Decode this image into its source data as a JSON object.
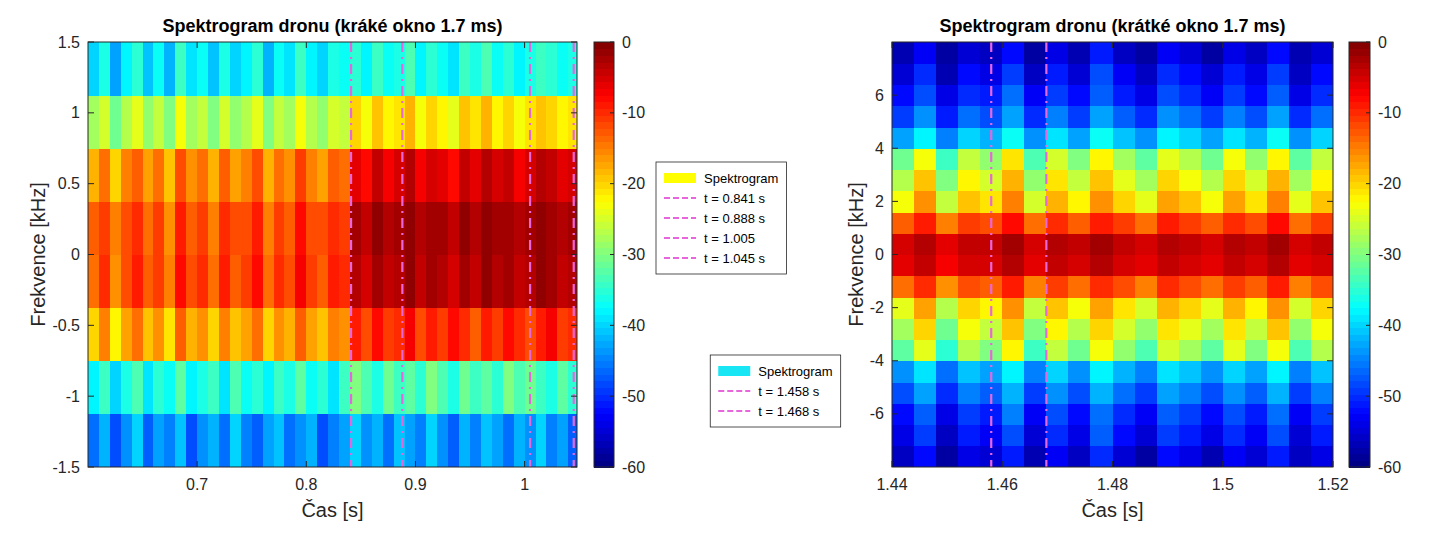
{
  "chart_data": [
    {
      "type": "heatmap",
      "title": "Spektrogram dronu (kráké okno 1.7 ms)",
      "x_label": "Čas [s]",
      "y_label": "Frekvence [kHz]",
      "xlim": [
        0.6,
        1.048
      ],
      "xticks": [
        0.7,
        0.8,
        0.9,
        1
      ],
      "ylim": [
        -1.5,
        1.5
      ],
      "yticks": [
        -1.5,
        -1,
        -0.5,
        0,
        0.5,
        1,
        1.5
      ],
      "x": [
        0.605,
        0.615,
        0.625,
        0.635,
        0.645,
        0.655,
        0.665,
        0.675,
        0.685,
        0.695,
        0.705,
        0.715,
        0.725,
        0.735,
        0.745,
        0.755,
        0.765,
        0.775,
        0.785,
        0.795,
        0.805,
        0.815,
        0.825,
        0.835,
        0.845,
        0.855,
        0.865,
        0.875,
        0.885,
        0.895,
        0.905,
        0.915,
        0.925,
        0.935,
        0.945,
        0.955,
        0.965,
        0.975,
        0.985,
        0.995,
        1.005,
        1.015,
        1.025,
        1.035,
        1.045
      ],
      "y": [
        -1.3125,
        -0.9375,
        -0.5625,
        -0.1875,
        0.1875,
        0.5625,
        0.9375,
        1.3125
      ],
      "series": [
        {
          "name": "Spektrogram",
          "color": "#ffff00",
          "values": [
            [
              -46,
              -42,
              -48,
              -44,
              -40,
              -47,
              -43,
              -45,
              -41,
              -48,
              -44,
              -42,
              -46,
              -40,
              -45,
              -47,
              -43,
              -41,
              -46,
              -44,
              -42,
              -48,
              -45,
              -43,
              -40,
              -44,
              -42,
              -46,
              -41,
              -43,
              -45,
              -40,
              -44,
              -47,
              -42,
              -45,
              -41,
              -43,
              -46,
              -42,
              -44,
              -40,
              -45,
              -43,
              -47
            ],
            [
              -38,
              -34,
              -40,
              -36,
              -33,
              -39,
              -35,
              -37,
              -32,
              -38,
              -36,
              -34,
              -39,
              -33,
              -37,
              -35,
              -38,
              -34,
              -36,
              -32,
              -37,
              -35,
              -39,
              -34,
              -30,
              -33,
              -36,
              -31,
              -34,
              -32,
              -35,
              -30,
              -33,
              -36,
              -31,
              -34,
              -32,
              -35,
              -30,
              -33,
              -31,
              -34,
              -36,
              -32,
              -35
            ],
            [
              -20,
              -15,
              -22,
              -17,
              -14,
              -19,
              -16,
              -21,
              -13,
              -18,
              -16,
              -20,
              -15,
              -19,
              -17,
              -14,
              -20,
              -16,
              -18,
              -13,
              -17,
              -19,
              -15,
              -16,
              -9,
              -12,
              -8,
              -11,
              -10,
              -7,
              -12,
              -9,
              -11,
              -8,
              -10,
              -13,
              -9,
              -11,
              -8,
              -10,
              -12,
              -9,
              -7,
              -11,
              -10
            ],
            [
              -14,
              -10,
              -16,
              -12,
              -9,
              -13,
              -11,
              -15,
              -8,
              -12,
              -10,
              -14,
              -9,
              -13,
              -11,
              -8,
              -14,
              -10,
              -12,
              -7,
              -11,
              -13,
              -9,
              -10,
              -3,
              -5,
              -2,
              -4,
              -3,
              -1,
              -4,
              -2,
              -3,
              -5,
              -2,
              -4,
              -1,
              -3,
              -2,
              -4,
              -3,
              -1,
              -2,
              -4,
              -3
            ],
            [
              -13,
              -11,
              -15,
              -12,
              -10,
              -14,
              -11,
              -16,
              -9,
              -13,
              -11,
              -15,
              -10,
              -12,
              -12,
              -9,
              -15,
              -11,
              -13,
              -8,
              -12,
              -12,
              -10,
              -11,
              -2,
              -4,
              -1,
              -3,
              -2,
              -1,
              -3,
              -2,
              -2,
              -4,
              -1,
              -3,
              -1,
              -2,
              -2,
              -3,
              -2,
              -1,
              -2,
              -3,
              -2
            ],
            [
              -18,
              -14,
              -20,
              -15,
              -13,
              -17,
              -14,
              -19,
              -12,
              -16,
              -14,
              -18,
              -13,
              -17,
              -15,
              -12,
              -18,
              -14,
              -16,
              -11,
              -15,
              -17,
              -13,
              -14,
              -6,
              -8,
              -4,
              -7,
              -5,
              -3,
              -7,
              -5,
              -6,
              -8,
              -4,
              -6,
              -3,
              -5,
              -4,
              -7,
              -5,
              -3,
              -4,
              -6,
              -5
            ],
            [
              -28,
              -25,
              -31,
              -27,
              -24,
              -29,
              -26,
              -30,
              -23,
              -28,
              -26,
              -30,
              -25,
              -29,
              -27,
              -24,
              -30,
              -26,
              -28,
              -23,
              -27,
              -29,
              -25,
              -26,
              -20,
              -23,
              -19,
              -22,
              -21,
              -18,
              -23,
              -20,
              -22,
              -24,
              -19,
              -21,
              -18,
              -22,
              -20,
              -23,
              -21,
              -19,
              -20,
              -22,
              -21
            ],
            [
              -40,
              -36,
              -43,
              -38,
              -35,
              -41,
              -37,
              -42,
              -34,
              -39,
              -37,
              -41,
              -36,
              -40,
              -38,
              -35,
              -42,
              -37,
              -39,
              -34,
              -38,
              -40,
              -36,
              -37,
              -35,
              -38,
              -34,
              -37,
              -36,
              -33,
              -38,
              -35,
              -37,
              -39,
              -34,
              -36,
              -33,
              -37,
              -35,
              -38,
              -36,
              -34,
              -35,
              -37,
              -36
            ]
          ]
        }
      ],
      "vlines": [
        {
          "x": 0.841,
          "name": "t = 0.841 s",
          "color": "#e866dc",
          "line_style": "dashdot"
        },
        {
          "x": 0.888,
          "name": "t = 0.888 s",
          "color": "#e866dc",
          "line_style": "dashdot"
        },
        {
          "x": 1.005,
          "name": "t = 1.005",
          "color": "#e866dc",
          "line_style": "dashdot"
        },
        {
          "x": 1.045,
          "name": "t = 1.045 s",
          "color": "#e866dc",
          "line_style": "dashdot"
        }
      ],
      "colorbar": {
        "lim": [
          -60,
          0
        ],
        "ticks": [
          -60,
          -50,
          -40,
          -30,
          -20,
          -10,
          0
        ]
      },
      "legend": "right"
    },
    {
      "type": "heatmap",
      "title": "Spektrogram dronu (krátké okno 1.7 ms)",
      "x_label": "Čas [s]",
      "y_label": "Frekvence [kHz]",
      "xlim": [
        1.44,
        1.52
      ],
      "xticks": [
        1.44,
        1.46,
        1.48,
        1.5,
        1.52
      ],
      "ylim": [
        -8,
        8
      ],
      "yticks": [
        -6,
        -4,
        -2,
        0,
        2,
        4,
        6
      ],
      "x": [
        1.442,
        1.446,
        1.45,
        1.454,
        1.458,
        1.462,
        1.466,
        1.47,
        1.474,
        1.478,
        1.482,
        1.486,
        1.49,
        1.494,
        1.498,
        1.502,
        1.506,
        1.51,
        1.514,
        1.518
      ],
      "y": [
        -7.6,
        -6.8,
        -6,
        -5.2,
        -4.4,
        -3.6,
        -2.8,
        -2,
        -1.2,
        -0.4,
        0.4,
        1.2,
        2,
        2.8,
        3.6,
        4.4,
        5.2,
        6,
        6.8,
        7.6
      ],
      "series": [
        {
          "name": "Spektrogram",
          "color": "#19e6f5",
          "values": [
            [
              -56,
              -52,
              -58,
              -54,
              -55,
              -51,
              -57,
              -53,
              -56,
              -50,
              -55,
              -58,
              -52,
              -54,
              -57,
              -53,
              -55,
              -51,
              -56,
              -54
            ],
            [
              -54,
              -49,
              -56,
              -51,
              -53,
              -48,
              -55,
              -50,
              -54,
              -47,
              -52,
              -55,
              -49,
              -51,
              -54,
              -50,
              -53,
              -48,
              -55,
              -51
            ],
            [
              -52,
              -47,
              -54,
              -49,
              -51,
              -45,
              -53,
              -48,
              -52,
              -46,
              -50,
              -53,
              -47,
              -49,
              -52,
              -48,
              -51,
              -46,
              -53,
              -49
            ],
            [
              -48,
              -43,
              -50,
              -45,
              -47,
              -42,
              -49,
              -44,
              -48,
              -42,
              -46,
              -49,
              -43,
              -45,
              -48,
              -44,
              -47,
              -42,
              -49,
              -45
            ],
            [
              -44,
              -39,
              -46,
              -41,
              -43,
              -38,
              -45,
              -40,
              -44,
              -38,
              -42,
              -45,
              -39,
              -41,
              -44,
              -40,
              -43,
              -38,
              -45,
              -41
            ],
            [
              -32,
              -24,
              -35,
              -27,
              -30,
              -22,
              -34,
              -26,
              -31,
              -23,
              -29,
              -33,
              -25,
              -28,
              -32,
              -24,
              -30,
              -23,
              -33,
              -27
            ],
            [
              -28,
              -20,
              -31,
              -23,
              -26,
              -19,
              -30,
              -22,
              -27,
              -20,
              -25,
              -29,
              -21,
              -24,
              -28,
              -21,
              -26,
              -19,
              -29,
              -23
            ],
            [
              -24,
              -17,
              -27,
              -20,
              -22,
              -16,
              -26,
              -19,
              -23,
              -17,
              -21,
              -25,
              -18,
              -20,
              -24,
              -18,
              -22,
              -16,
              -25,
              -20
            ],
            [
              -14,
              -10,
              -16,
              -12,
              -13,
              -9,
              -15,
              -11,
              -14,
              -10,
              -12,
              -15,
              -10,
              -12,
              -14,
              -11,
              -13,
              -9,
              -15,
              -12
            ],
            [
              -6,
              -4,
              -7,
              -5,
              -5,
              -3,
              -6,
              -4,
              -5,
              -3,
              -5,
              -6,
              -4,
              -5,
              -6,
              -4,
              -5,
              -3,
              -6,
              -5
            ],
            [
              -5,
              -3,
              -6,
              -4,
              -4,
              -2,
              -5,
              -3,
              -4,
              -2,
              -4,
              -5,
              -3,
              -4,
              -5,
              -3,
              -4,
              -2,
              -5,
              -4
            ],
            [
              -13,
              -9,
              -15,
              -11,
              -12,
              -8,
              -14,
              -10,
              -13,
              -9,
              -11,
              -14,
              -9,
              -11,
              -13,
              -10,
              -12,
              -8,
              -14,
              -11
            ],
            [
              -23,
              -16,
              -26,
              -19,
              -21,
              -15,
              -25,
              -18,
              -22,
              -16,
              -20,
              -24,
              -17,
              -19,
              -23,
              -17,
              -21,
              -15,
              -24,
              -19
            ],
            [
              -27,
              -19,
              -30,
              -22,
              -25,
              -18,
              -29,
              -21,
              -26,
              -19,
              -24,
              -28,
              -20,
              -23,
              -27,
              -20,
              -25,
              -18,
              -28,
              -22
            ],
            [
              -31,
              -23,
              -34,
              -26,
              -29,
              -21,
              -33,
              -25,
              -30,
              -22,
              -28,
              -32,
              -24,
              -27,
              -31,
              -23,
              -29,
              -22,
              -32,
              -26
            ],
            [
              -43,
              -38,
              -45,
              -40,
              -42,
              -37,
              -44,
              -39,
              -43,
              -37,
              -41,
              -44,
              -38,
              -40,
              -43,
              -39,
              -42,
              -37,
              -44,
              -40
            ],
            [
              -49,
              -44,
              -51,
              -46,
              -48,
              -43,
              -50,
              -45,
              -49,
              -43,
              -47,
              -50,
              -44,
              -46,
              -49,
              -45,
              -48,
              -43,
              -50,
              -46
            ],
            [
              -52,
              -48,
              -54,
              -50,
              -51,
              -46,
              -53,
              -49,
              -52,
              -47,
              -51,
              -54,
              -48,
              -50,
              -53,
              -49,
              -52,
              -47,
              -54,
              -50
            ],
            [
              -55,
              -50,
              -57,
              -52,
              -54,
              -49,
              -56,
              -51,
              -55,
              -48,
              -53,
              -56,
              -50,
              -52,
              -55,
              -51,
              -54,
              -49,
              -56,
              -52
            ],
            [
              -57,
              -53,
              -58,
              -55,
              -56,
              -52,
              -58,
              -54,
              -57,
              -51,
              -56,
              -58,
              -53,
              -55,
              -58,
              -54,
              -56,
              -52,
              -57,
              -55
            ]
          ]
        }
      ],
      "vlines": [
        {
          "x": 1.458,
          "name": "t = 1.458 s",
          "color": "#e866dc",
          "line_style": "dashdot"
        },
        {
          "x": 1.468,
          "name": "t = 1.468 s",
          "color": "#e866dc",
          "line_style": "dashdot"
        }
      ],
      "colorbar": {
        "lim": [
          -60,
          0
        ],
        "ticks": [
          -60,
          -50,
          -40,
          -30,
          -20,
          -10,
          0
        ]
      },
      "legend": "left"
    }
  ]
}
